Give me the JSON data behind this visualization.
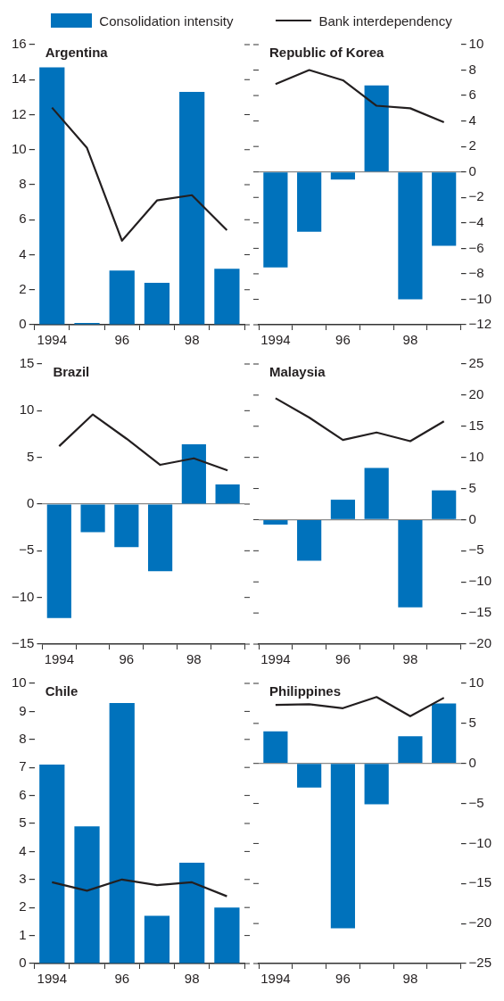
{
  "chart_data": [
    {
      "type": "bar",
      "title": "Argentina",
      "categories": [
        "1994",
        null,
        "96",
        null,
        "98",
        null
      ],
      "legend": "top",
      "series": [
        {
          "name": "Consolidation intensity",
          "color": "#0072bc",
          "values": [
            14.7,
            0.1,
            3.1,
            2.4,
            13.3,
            3.2
          ]
        },
        {
          "name": "Bank interdependency",
          "type": "line",
          "color": "#231f20",
          "values": [
            12.4,
            10.1,
            4.8,
            7.1,
            7.4,
            5.4
          ]
        }
      ],
      "ylim": [
        0,
        16
      ],
      "yticks": [
        0,
        2,
        4,
        6,
        8,
        10,
        12,
        14,
        16
      ]
    },
    {
      "type": "bar",
      "title": "Republic of Korea",
      "categories": [
        "1994",
        null,
        "96",
        null,
        "98",
        null
      ],
      "series": [
        {
          "color": "#0072bc",
          "values": [
            -7.5,
            -4.7,
            -0.6,
            6.8,
            -10.0,
            -5.8
          ]
        },
        {
          "type": "line",
          "color": "#231f20",
          "values": [
            6.9,
            8.0,
            7.2,
            5.2,
            5.0,
            3.9
          ]
        }
      ],
      "ylim": [
        -12,
        10
      ],
      "yticks": [
        {
          "value": -12,
          "label": "−12"
        },
        {
          "value": -10,
          "label": "−10"
        },
        {
          "value": -8,
          "label": "−8"
        },
        {
          "value": -6,
          "label": "−6"
        },
        {
          "value": -4,
          "label": "−4"
        },
        {
          "value": -2,
          "label": "−2"
        },
        0,
        2,
        4,
        6,
        8,
        10
      ]
    },
    {
      "type": "bar",
      "title": "Brazil",
      "categories": [
        "1994",
        null,
        "96",
        null,
        "98",
        null
      ],
      "series": [
        {
          "color": "#0072bc",
          "values": [
            -12.2,
            -3.0,
            -4.6,
            -7.2,
            6.4,
            2.1
          ]
        },
        {
          "type": "line",
          "color": "#231f20",
          "values": [
            6.2,
            9.6,
            7.0,
            4.2,
            4.9,
            3.6
          ]
        }
      ],
      "ylim": [
        -15,
        15
      ],
      "yticks": [
        {
          "value": -15,
          "label": "−15"
        },
        {
          "value": -10,
          "label": "−10"
        },
        {
          "value": -5,
          "label": "−5"
        },
        0,
        5,
        10,
        15
      ]
    },
    {
      "type": "bar",
      "title": "Malaysia",
      "categories": [
        "1994",
        null,
        "96",
        null,
        "98",
        null
      ],
      "series": [
        {
          "color": "#0072bc",
          "values": [
            -0.8,
            -6.6,
            3.2,
            8.3,
            -14.1,
            4.7
          ]
        },
        {
          "type": "line",
          "color": "#231f20",
          "values": [
            19.5,
            16.4,
            12.8,
            14.0,
            12.6,
            15.8
          ]
        }
      ],
      "ylim": [
        -20,
        25
      ],
      "yticks": [
        {
          "value": -20,
          "label": "−20"
        },
        {
          "value": -15,
          "label": "−15"
        },
        {
          "value": -10,
          "label": "−10"
        },
        {
          "value": -5,
          "label": "−5"
        },
        0,
        5,
        10,
        15,
        20,
        25
      ]
    },
    {
      "type": "bar",
      "title": "Chile",
      "categories": [
        "1994",
        null,
        "96",
        null,
        "98",
        null
      ],
      "series": [
        {
          "color": "#0072bc",
          "values": [
            7.1,
            4.9,
            9.3,
            1.7,
            3.6,
            2.0
          ]
        },
        {
          "type": "line",
          "color": "#231f20",
          "values": [
            2.9,
            2.6,
            3.0,
            2.8,
            2.9,
            2.4
          ]
        }
      ],
      "ylim": [
        0,
        10
      ],
      "yticks": [
        0,
        1,
        2,
        3,
        4,
        5,
        6,
        7,
        8,
        9,
        10
      ]
    },
    {
      "type": "bar",
      "title": "Philippines",
      "categories": [
        "1994",
        null,
        "96",
        null,
        "98",
        null
      ],
      "series": [
        {
          "color": "#0072bc",
          "values": [
            4.0,
            -3.0,
            -20.6,
            -5.1,
            3.4,
            7.5
          ]
        },
        {
          "type": "line",
          "color": "#231f20",
          "values": [
            7.3,
            7.4,
            6.9,
            8.3,
            5.9,
            8.2
          ]
        }
      ],
      "ylim": [
        -25,
        10
      ],
      "yticks": [
        {
          "value": -25,
          "label": "−25"
        },
        {
          "value": -20,
          "label": "−20"
        },
        {
          "value": -15,
          "label": "−15"
        },
        {
          "value": -10,
          "label": "−10"
        },
        {
          "value": -5,
          "label": "−5"
        },
        0,
        5,
        10
      ]
    }
  ]
}
